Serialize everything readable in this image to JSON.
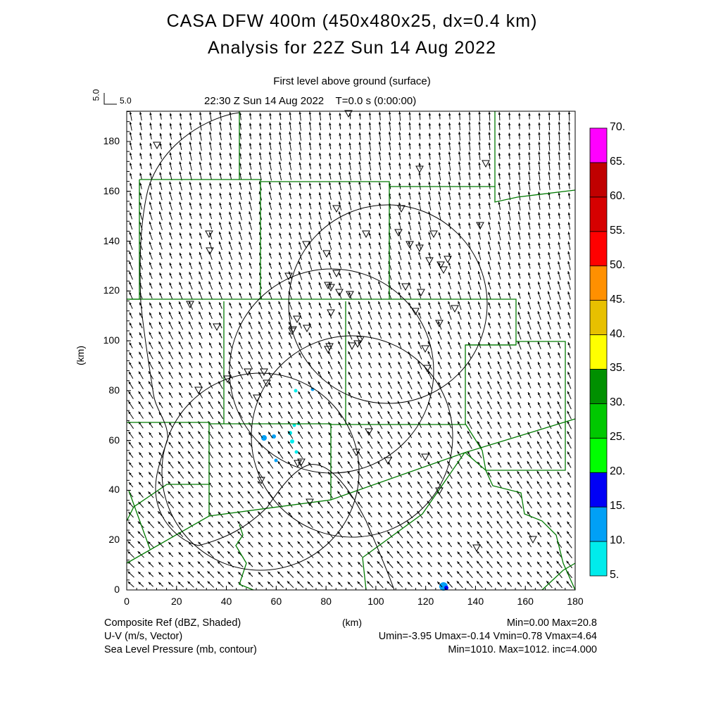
{
  "header": {
    "title_line1": "CASA DFW 400m (450x480x25, dx=0.4 km)",
    "title_line2": "Analysis for 22Z Sun 14 Aug 2022",
    "level": "First level above ground (surface)",
    "time": "22:30 Z Sun 14 Aug 2022    T=0.0 s (0:00:00)",
    "vector_scale_v": "5.0",
    "vector_scale_u": "5.0"
  },
  "chart_data": {
    "type": "map-field",
    "xlabel": "(km)",
    "ylabel": "(km)",
    "xlim": [
      0,
      180
    ],
    "ylim": [
      0,
      192
    ],
    "xticks": [
      "0",
      "20",
      "40",
      "60",
      "80",
      "100",
      "120",
      "140",
      "160",
      "180"
    ],
    "yticks": [
      "0",
      "20",
      "40",
      "60",
      "80",
      "100",
      "120",
      "140",
      "160",
      "180"
    ],
    "colorbar": {
      "labels": [
        "5.",
        "10.",
        "15.",
        "20.",
        "25.",
        "30.",
        "35.",
        "40.",
        "45.",
        "50.",
        "55.",
        "60.",
        "65.",
        "70."
      ],
      "colors": [
        "#00ecec",
        "#01a0f6",
        "#0000f6",
        "#00ff00",
        "#00c800",
        "#009000",
        "#ffff00",
        "#e7c000",
        "#ff9000",
        "#ff0000",
        "#d60000",
        "#c00000",
        "#ff00ff"
      ]
    },
    "fields": [
      {
        "name": "Composite Ref (dBZ, Shaded)",
        "stats": "Min=0.00 Max=20.8"
      },
      {
        "name": "U-V (m/s, Vector)",
        "stats": "Umin=-3.95 Umax=-0.14 Vmin=0.78 Vmax=4.64"
      },
      {
        "name": "Sea Level Pressure (mb, contour)",
        "stats": "Min=1010. Max=1012. inc=4.000"
      }
    ]
  }
}
